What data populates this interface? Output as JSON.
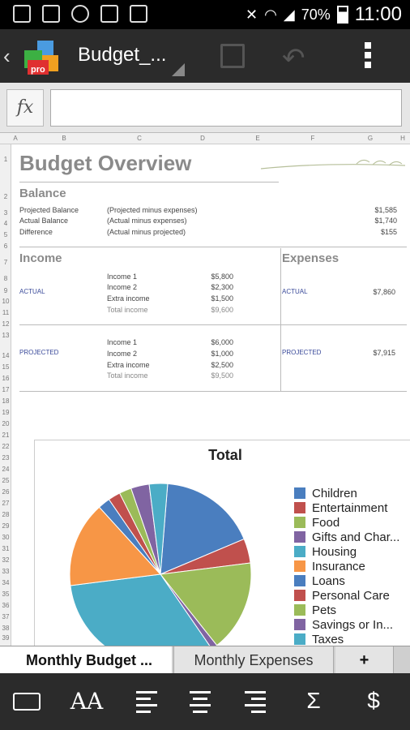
{
  "status_bar": {
    "battery": "70%",
    "time": "11:00"
  },
  "app": {
    "logo_badge": "pro",
    "doc_title": "Budget_..."
  },
  "formula_bar": {
    "fx_label": "fx",
    "value": ""
  },
  "columns": [
    "A",
    "B",
    "C",
    "D",
    "E",
    "F",
    "G",
    "H"
  ],
  "rows": [
    "1",
    "2",
    "3",
    "4",
    "5",
    "6",
    "7",
    "8",
    "9",
    "10",
    "11",
    "12",
    "13",
    "14",
    "15",
    "16",
    "17",
    "18",
    "19",
    "20",
    "21",
    "22",
    "23",
    "24",
    "25",
    "26",
    "27",
    "28",
    "29",
    "30",
    "31",
    "32",
    "33",
    "34",
    "35",
    "36",
    "37",
    "38",
    "39"
  ],
  "sheet": {
    "title": "Budget Overview",
    "balance": {
      "heading": "Balance",
      "rows": [
        {
          "label": "Projected Balance",
          "formula": "(Projected  minus expenses)",
          "value": "$1,585"
        },
        {
          "label": "Actual Balance",
          "formula": "(Actual  minus expenses)",
          "value": "$1,740"
        },
        {
          "label": "Difference",
          "formula": "(Actual minus projected)",
          "value": "$155"
        }
      ]
    },
    "income": {
      "heading": "Income",
      "actual_label": "ACTUAL",
      "actual": [
        {
          "label": "Income 1",
          "value": "$5,800"
        },
        {
          "label": "Income 2",
          "value": "$2,300"
        },
        {
          "label": "Extra income",
          "value": "$1,500"
        },
        {
          "label": "Total income",
          "value": "$9,600"
        }
      ],
      "projected_label": "PROJECTED",
      "projected": [
        {
          "label": "Income 1",
          "value": "$6,000"
        },
        {
          "label": "Income 2",
          "value": "$1,000"
        },
        {
          "label": "Extra income",
          "value": "$2,500"
        },
        {
          "label": "Total income",
          "value": "$9,500"
        }
      ]
    },
    "expenses": {
      "heading": "Expenses",
      "actual_label": "ACTUAL",
      "actual_value": "$7,860",
      "projected_label": "PROJECTED",
      "projected_value": "$7,915"
    }
  },
  "chart_data": {
    "type": "pie",
    "title": "Total",
    "categories": [
      "Children",
      "Entertainment",
      "Food",
      "Gifts and Char...",
      "Housing",
      "Insurance",
      "Loans",
      "Personal Care",
      "Pets",
      "Savings or In...",
      "Taxes"
    ],
    "values": [
      16,
      4,
      15,
      1,
      30,
      14,
      2,
      2,
      2,
      3,
      3
    ],
    "colors": [
      "#4a7ebf",
      "#c0504d",
      "#9bbb59",
      "#8064a2",
      "#4bacc6",
      "#f79646",
      "#4a7ebf",
      "#c0504d",
      "#9bbb59",
      "#8064a2",
      "#4bacc6"
    ],
    "legend": "right"
  },
  "tabs": [
    {
      "label": "Monthly Budget ..."
    },
    {
      "label": "Monthly Expenses"
    },
    {
      "label": "+"
    }
  ],
  "bottom_toolbar": {
    "font_label": "AA",
    "sum_label": "Σ",
    "currency_label": "$"
  }
}
